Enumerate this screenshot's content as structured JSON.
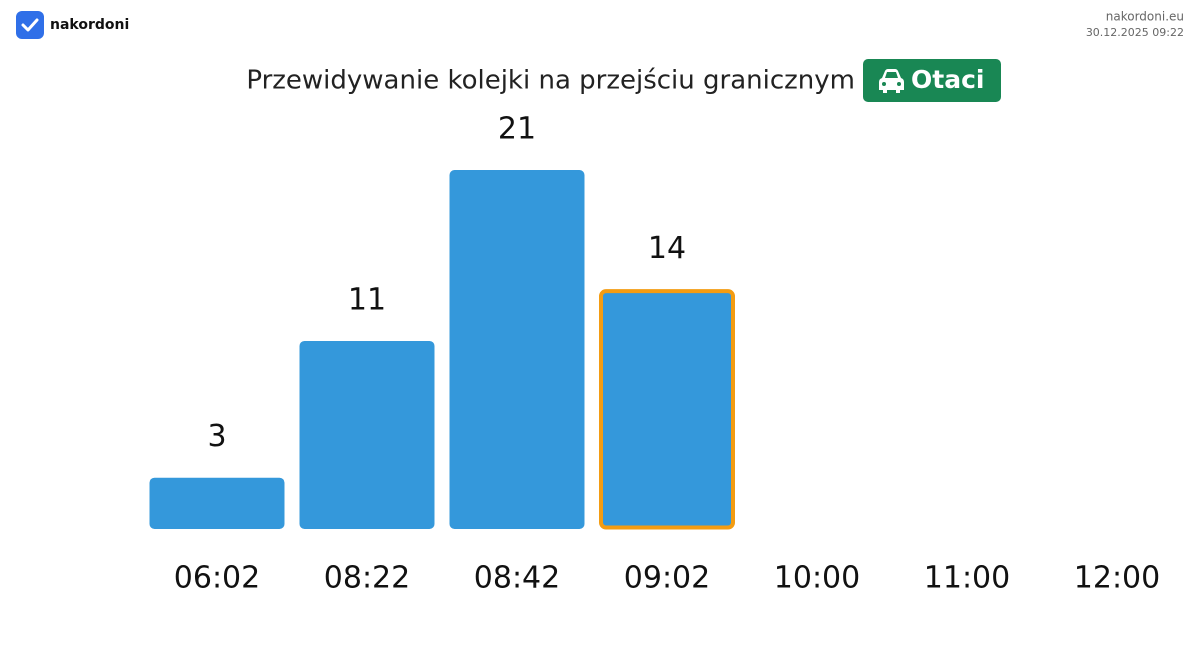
{
  "header": {
    "brand": "nakordoni",
    "site": "nakordoni.eu",
    "timestamp": "30.12.2025 09:22"
  },
  "chart_data": {
    "type": "bar",
    "title": "Przewidywanie kolejki na przejściu granicznym",
    "badge": "Otaci",
    "categories": [
      "06:02",
      "08:22",
      "08:42",
      "09:02",
      "10:00",
      "11:00",
      "12:00"
    ],
    "values": [
      3,
      11,
      21,
      14,
      null,
      null,
      null
    ],
    "color": "#3498db",
    "highlight_category": "09:02",
    "highlight_color": "#f39c12",
    "badge_color": "#198754"
  }
}
